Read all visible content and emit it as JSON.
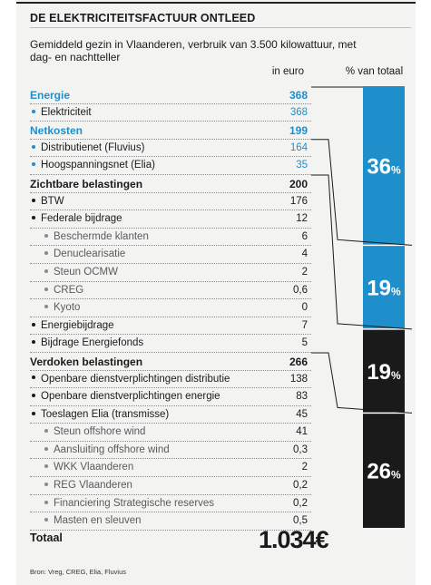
{
  "title": "DE ELEKTRICITEITSFACTUUR ONTLEED",
  "subtitle": "Gemiddeld gezin in Vlaanderen, verbruik van 3.500 kilowattuur, met dag- en nachtteller",
  "columns": {
    "euro": "in euro",
    "pct": "% van totaal"
  },
  "colors": {
    "blue": "#1e8fcb",
    "black": "#1a1a1a"
  },
  "chart_data": {
    "type": "table",
    "rows": [
      {
        "label": "Energie",
        "value": "368",
        "level": "group",
        "color": "blue"
      },
      {
        "label": "Elektriciteit",
        "value": "368",
        "level": "item",
        "color": "blue"
      },
      {
        "label": "Netkosten",
        "value": "199",
        "level": "group",
        "color": "blue"
      },
      {
        "label": "Distributienet (Fluvius)",
        "value": "164",
        "level": "item",
        "color": "blue"
      },
      {
        "label": "Hoogspanningsnet (Elia)",
        "value": "35",
        "level": "item",
        "color": "blue"
      },
      {
        "label": "Zichtbare belastingen",
        "value": "200",
        "level": "group",
        "color": "black"
      },
      {
        "label": "BTW",
        "value": "176",
        "level": "item",
        "color": "black"
      },
      {
        "label": "Federale bijdrage",
        "value": "12",
        "level": "item",
        "color": "black"
      },
      {
        "label": "Beschermde klanten",
        "value": "6",
        "level": "sub",
        "color": "black"
      },
      {
        "label": "Denuclearisatie",
        "value": "4",
        "level": "sub",
        "color": "black"
      },
      {
        "label": "Steun OCMW",
        "value": "2",
        "level": "sub",
        "color": "black"
      },
      {
        "label": "CREG",
        "value": "0,6",
        "level": "sub",
        "color": "black"
      },
      {
        "label": "Kyoto",
        "value": "0",
        "level": "sub",
        "color": "black"
      },
      {
        "label": "Energiebijdrage",
        "value": "7",
        "level": "item",
        "color": "black"
      },
      {
        "label": "Bijdrage Energiefonds",
        "value": "5",
        "level": "item",
        "color": "black"
      },
      {
        "label": "Verdoken belastingen",
        "value": "266",
        "level": "group",
        "color": "black"
      },
      {
        "label": "Openbare dienstverplichtingen distributie",
        "value": "138",
        "level": "item",
        "color": "black"
      },
      {
        "label": "Openbare dienstverplichtingen energie",
        "value": "83",
        "level": "item",
        "color": "black"
      },
      {
        "label": "Toeslagen Elia (transmisse)",
        "value": "45",
        "level": "item",
        "color": "black"
      },
      {
        "label": "Steun offshore wind",
        "value": "41",
        "level": "sub",
        "color": "black"
      },
      {
        "label": "Aansluiting offshore wind",
        "value": "0,3",
        "level": "sub",
        "color": "black"
      },
      {
        "label": "WKK Vlaanderen",
        "value": "2",
        "level": "sub",
        "color": "black"
      },
      {
        "label": "REG Vlaanderen",
        "value": "0,2",
        "level": "sub",
        "color": "black"
      },
      {
        "label": "Financiering Strategische reserves",
        "value": "0,2",
        "level": "sub",
        "color": "black"
      },
      {
        "label": "Masten en sleuven",
        "value": "0,5",
        "level": "sub",
        "color": "black"
      }
    ],
    "stacked_bar": [
      {
        "pct_label": "36",
        "value": 36,
        "color": "#1e8fcb",
        "starts_at_row": 0
      },
      {
        "pct_label": "19",
        "value": 19,
        "color": "#1e8fcb",
        "starts_at_row": 3
      },
      {
        "pct_label": "19",
        "value": 19,
        "color": "#1a1a1a",
        "starts_at_row": 5
      },
      {
        "pct_label": "26",
        "value": 26,
        "color": "#1a1a1a",
        "starts_at_row": 15
      }
    ],
    "pct_unit": "%"
  },
  "total": {
    "label": "Totaal",
    "value": "1.034€"
  },
  "source": "Bron: Vreg, CREG, Elia, Fluvius"
}
